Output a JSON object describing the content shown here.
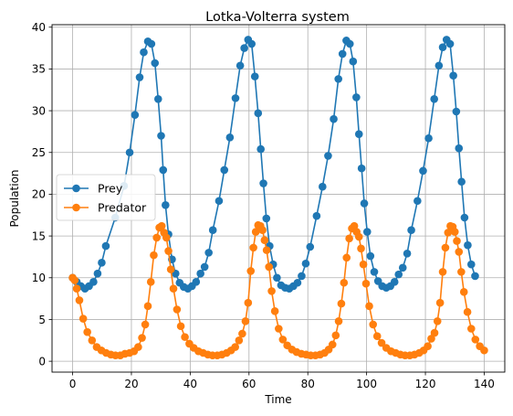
{
  "chart_data": {
    "type": "line",
    "title": "Lotka-Volterra system",
    "xlabel": "Time",
    "ylabel": "Population",
    "xlim": [
      -7,
      147
    ],
    "ylim": [
      -1.3,
      40.3
    ],
    "xticks": [
      0,
      20,
      40,
      60,
      80,
      100,
      120,
      140
    ],
    "yticks": [
      0,
      5,
      10,
      15,
      20,
      25,
      30,
      35,
      40
    ],
    "grid": true,
    "legend_position": "center-left",
    "colors": {
      "Prey": "#1f77b4",
      "Predator": "#ff7f0e"
    },
    "series": [
      {
        "name": "Prey",
        "marker": "circle",
        "points": [
          [
            0,
            10.0
          ],
          [
            1.4,
            9.5
          ],
          [
            2.8,
            9.0
          ],
          [
            4.2,
            8.7
          ],
          [
            5.6,
            9.0
          ],
          [
            7.1,
            9.5
          ],
          [
            8.5,
            10.5
          ],
          [
            9.9,
            11.8
          ],
          [
            11.3,
            13.8
          ],
          [
            14.5,
            17.2
          ],
          [
            17.5,
            21.0
          ],
          [
            19.4,
            25.0
          ],
          [
            21.2,
            29.5
          ],
          [
            22.8,
            34.0
          ],
          [
            24.2,
            37.0
          ],
          [
            25.6,
            38.3
          ],
          [
            26.8,
            38.0
          ],
          [
            28.0,
            35.7
          ],
          [
            29.1,
            31.4
          ],
          [
            30.1,
            27.0
          ],
          [
            30.8,
            22.9
          ],
          [
            31.6,
            18.7
          ],
          [
            32.6,
            15.2
          ],
          [
            33.8,
            12.2
          ],
          [
            35.0,
            10.5
          ],
          [
            36.4,
            9.4
          ],
          [
            37.8,
            8.9
          ],
          [
            39.2,
            8.7
          ],
          [
            40.6,
            9.0
          ],
          [
            42.0,
            9.5
          ],
          [
            43.5,
            10.5
          ],
          [
            44.9,
            11.3
          ],
          [
            46.3,
            13.0
          ],
          [
            47.7,
            15.7
          ],
          [
            49.8,
            19.2
          ],
          [
            51.6,
            22.9
          ],
          [
            53.5,
            26.8
          ],
          [
            55.4,
            31.5
          ],
          [
            57.0,
            35.4
          ],
          [
            58.4,
            37.5
          ],
          [
            59.7,
            38.5
          ],
          [
            60.9,
            38.0
          ],
          [
            62.0,
            34.1
          ],
          [
            63.1,
            29.7
          ],
          [
            64.0,
            25.4
          ],
          [
            64.9,
            21.3
          ],
          [
            65.9,
            17.1
          ],
          [
            67.0,
            13.8
          ],
          [
            68.2,
            11.6
          ],
          [
            69.5,
            10.0
          ],
          [
            70.9,
            9.1
          ],
          [
            72.3,
            8.8
          ],
          [
            73.7,
            8.7
          ],
          [
            75.1,
            9.0
          ],
          [
            76.5,
            9.4
          ],
          [
            77.9,
            10.2
          ],
          [
            79.3,
            11.7
          ],
          [
            80.8,
            13.7
          ],
          [
            83.0,
            17.4
          ],
          [
            85.0,
            20.9
          ],
          [
            86.9,
            24.6
          ],
          [
            88.8,
            29.0
          ],
          [
            90.4,
            33.8
          ],
          [
            91.8,
            36.8
          ],
          [
            93.1,
            38.4
          ],
          [
            94.3,
            38.0
          ],
          [
            95.4,
            35.9
          ],
          [
            96.5,
            31.6
          ],
          [
            97.4,
            27.2
          ],
          [
            98.3,
            23.1
          ],
          [
            99.2,
            18.9
          ],
          [
            100.2,
            15.5
          ],
          [
            101.3,
            12.6
          ],
          [
            102.6,
            10.7
          ],
          [
            103.9,
            9.6
          ],
          [
            105.3,
            9.0
          ],
          [
            106.7,
            8.8
          ],
          [
            108.1,
            9.0
          ],
          [
            109.5,
            9.5
          ],
          [
            110.9,
            10.4
          ],
          [
            112.3,
            11.2
          ],
          [
            113.8,
            12.9
          ],
          [
            115.2,
            15.7
          ],
          [
            117.3,
            19.2
          ],
          [
            119.2,
            22.8
          ],
          [
            121.1,
            26.7
          ],
          [
            123.0,
            31.4
          ],
          [
            124.6,
            35.4
          ],
          [
            125.9,
            37.6
          ],
          [
            127.2,
            38.5
          ],
          [
            128.4,
            38.0
          ],
          [
            129.5,
            34.2
          ],
          [
            130.5,
            29.9
          ],
          [
            131.4,
            25.5
          ],
          [
            132.3,
            21.5
          ],
          [
            133.3,
            17.2
          ],
          [
            134.4,
            13.9
          ],
          [
            135.6,
            11.6
          ],
          [
            136.9,
            10.2
          ]
        ]
      },
      {
        "name": "Predator",
        "marker": "circle",
        "points": [
          [
            0,
            10.0
          ],
          [
            0.7,
            9.7
          ],
          [
            1.4,
            8.7
          ],
          [
            2.3,
            7.3
          ],
          [
            3.6,
            5.1
          ],
          [
            5.0,
            3.5
          ],
          [
            6.6,
            2.5
          ],
          [
            8.2,
            1.7
          ],
          [
            9.8,
            1.3
          ],
          [
            11.4,
            1.0
          ],
          [
            13.0,
            0.8
          ],
          [
            14.6,
            0.7
          ],
          [
            16.2,
            0.7
          ],
          [
            17.8,
            0.9
          ],
          [
            19.4,
            1.0
          ],
          [
            20.9,
            1.2
          ],
          [
            22.3,
            1.7
          ],
          [
            23.6,
            2.8
          ],
          [
            24.7,
            4.4
          ],
          [
            25.6,
            6.6
          ],
          [
            26.6,
            9.5
          ],
          [
            27.6,
            12.7
          ],
          [
            28.6,
            14.8
          ],
          [
            29.5,
            16.0
          ],
          [
            30.3,
            16.2
          ],
          [
            31.1,
            15.4
          ],
          [
            31.9,
            14.8
          ],
          [
            32.6,
            13.2
          ],
          [
            33.4,
            11.0
          ],
          [
            34.3,
            8.7
          ],
          [
            35.5,
            6.2
          ],
          [
            36.8,
            4.2
          ],
          [
            38.2,
            2.9
          ],
          [
            39.7,
            2.1
          ],
          [
            41.2,
            1.6
          ],
          [
            42.8,
            1.2
          ],
          [
            44.4,
            1.0
          ],
          [
            46.0,
            0.8
          ],
          [
            47.6,
            0.7
          ],
          [
            49.2,
            0.7
          ],
          [
            50.8,
            0.8
          ],
          [
            52.4,
            1.0
          ],
          [
            53.9,
            1.3
          ],
          [
            55.3,
            1.7
          ],
          [
            56.6,
            2.5
          ],
          [
            57.7,
            3.3
          ],
          [
            58.8,
            4.8
          ],
          [
            59.7,
            7.0
          ],
          [
            60.6,
            10.8
          ],
          [
            61.5,
            13.6
          ],
          [
            62.3,
            15.5
          ],
          [
            63.1,
            16.3
          ],
          [
            63.9,
            16.2
          ],
          [
            64.6,
            15.7
          ],
          [
            65.3,
            14.5
          ],
          [
            66.0,
            13.3
          ],
          [
            66.8,
            11.3
          ],
          [
            67.7,
            8.4
          ],
          [
            68.8,
            6.0
          ],
          [
            70.1,
            3.9
          ],
          [
            71.5,
            2.6
          ],
          [
            73.0,
            1.9
          ],
          [
            74.6,
            1.4
          ],
          [
            76.2,
            1.1
          ],
          [
            77.8,
            0.9
          ],
          [
            79.4,
            0.8
          ],
          [
            81.0,
            0.7
          ],
          [
            82.6,
            0.7
          ],
          [
            84.2,
            0.8
          ],
          [
            85.7,
            1.0
          ],
          [
            87.1,
            1.4
          ],
          [
            88.4,
            2.0
          ],
          [
            89.5,
            3.1
          ],
          [
            90.5,
            4.8
          ],
          [
            91.4,
            6.9
          ],
          [
            92.3,
            9.4
          ],
          [
            93.2,
            12.4
          ],
          [
            94.1,
            14.7
          ],
          [
            95.0,
            15.9
          ],
          [
            95.8,
            16.2
          ],
          [
            96.6,
            15.5
          ],
          [
            97.4,
            14.9
          ],
          [
            98.1,
            13.5
          ],
          [
            98.9,
            11.6
          ],
          [
            99.8,
            9.3
          ],
          [
            100.9,
            6.6
          ],
          [
            102.2,
            4.4
          ],
          [
            103.6,
            3.0
          ],
          [
            105.1,
            2.2
          ],
          [
            106.7,
            1.6
          ],
          [
            108.3,
            1.2
          ],
          [
            109.9,
            1.0
          ],
          [
            111.5,
            0.8
          ],
          [
            113.1,
            0.7
          ],
          [
            114.7,
            0.7
          ],
          [
            116.3,
            0.8
          ],
          [
            117.9,
            1.0
          ],
          [
            119.4,
            1.3
          ],
          [
            120.8,
            1.8
          ],
          [
            122.0,
            2.7
          ],
          [
            123.1,
            3.4
          ],
          [
            124.1,
            4.8
          ],
          [
            125.0,
            7.0
          ],
          [
            125.9,
            10.7
          ],
          [
            126.8,
            13.6
          ],
          [
            127.7,
            15.4
          ],
          [
            128.5,
            16.2
          ],
          [
            129.3,
            16.1
          ],
          [
            130.0,
            15.5
          ],
          [
            130.7,
            14.4
          ],
          [
            131.4,
            13.1
          ],
          [
            132.2,
            10.7
          ],
          [
            133.1,
            8.3
          ],
          [
            134.3,
            5.9
          ],
          [
            135.6,
            3.9
          ],
          [
            137.0,
            2.6
          ],
          [
            138.5,
            1.8
          ],
          [
            140.0,
            1.3
          ]
        ]
      }
    ]
  }
}
